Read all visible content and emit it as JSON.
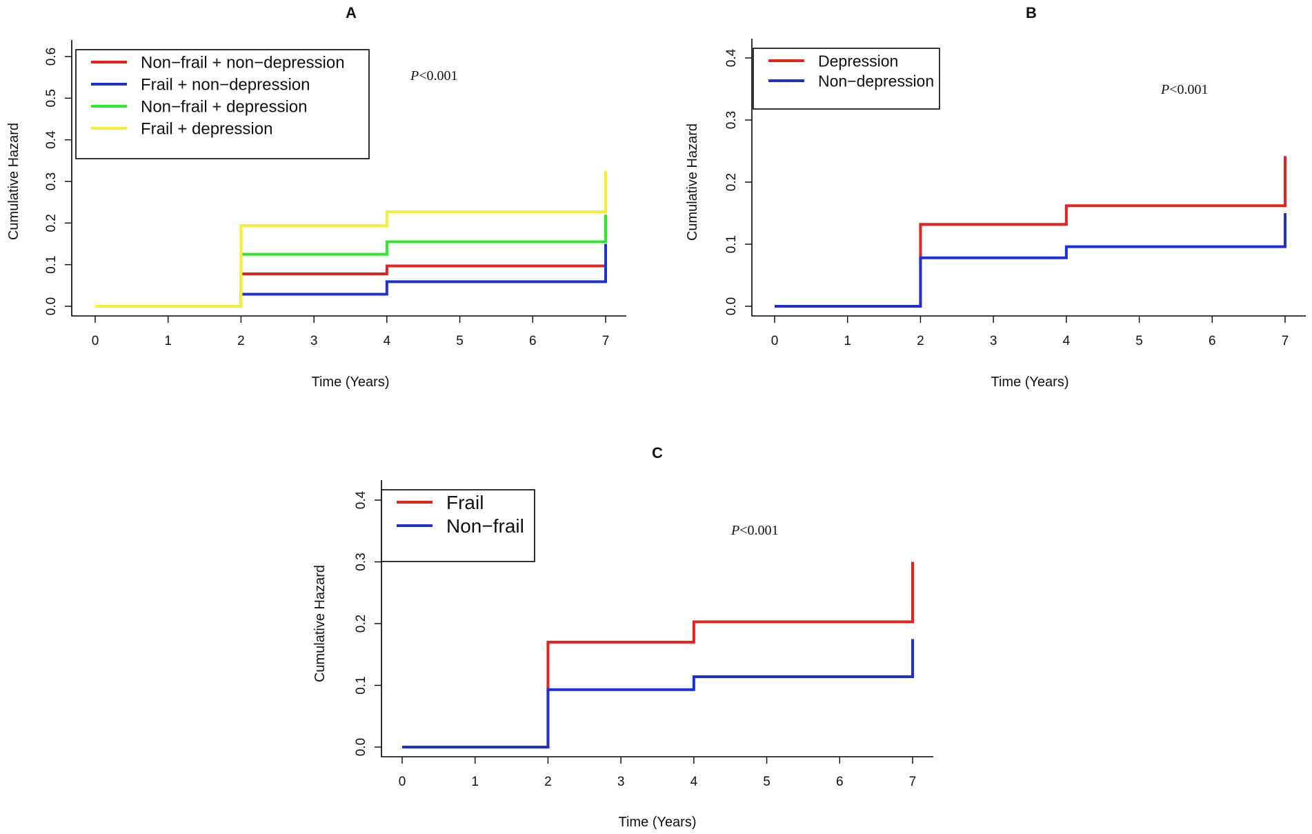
{
  "chart_data": [
    {
      "type": "line",
      "panel": "A",
      "title": "A",
      "xlabel": "Time (Years)",
      "ylabel": "Cumulative Hazard",
      "xlim": [
        0,
        7
      ],
      "ylim": [
        0,
        0.6
      ],
      "xticks": [
        "0",
        "1",
        "2",
        "3",
        "4",
        "5",
        "6",
        "7"
      ],
      "yticks": [
        "0.0",
        "0.1",
        "0.2",
        "0.3",
        "0.4",
        "0.5",
        "0.6"
      ],
      "annotation": {
        "italic": "P",
        "rest": "<0.001"
      },
      "legend_position": "top-left",
      "series": [
        {
          "name": "Non−frail + non−depression",
          "color": "#e8201e",
          "steps": [
            [
              0,
              0
            ],
            [
              2,
              0.078
            ],
            [
              4,
              0.097
            ],
            [
              7,
              0.097
            ]
          ],
          "end_value": 0.12
        },
        {
          "name": "Frail + non−depression",
          "color": "#1f2fd6",
          "steps": [
            [
              0,
              0
            ],
            [
              2,
              0.029
            ],
            [
              4,
              0.059
            ],
            [
              7,
              0.059
            ]
          ],
          "end_value": 0.15
        },
        {
          "name": "Non−frail + depression",
          "color": "#2ee82a",
          "steps": [
            [
              0,
              0
            ],
            [
              2,
              0.125
            ],
            [
              4,
              0.155
            ],
            [
              7,
              0.155
            ]
          ],
          "end_value": 0.22
        },
        {
          "name": "Frail + depression",
          "color": "#f6ef3a",
          "steps": [
            [
              0,
              0
            ],
            [
              2,
              0.194
            ],
            [
              4,
              0.227
            ],
            [
              7,
              0.227
            ]
          ],
          "end_value": 0.325
        }
      ]
    },
    {
      "type": "line",
      "panel": "B",
      "title": "B",
      "xlabel": "Time (Years)",
      "ylabel": "Cumulative Hazard",
      "xlim": [
        0,
        7
      ],
      "ylim": [
        0,
        0.4
      ],
      "xticks": [
        "0",
        "1",
        "2",
        "3",
        "4",
        "5",
        "6",
        "7"
      ],
      "yticks": [
        "0.0",
        "0.1",
        "0.2",
        "0.3",
        "0.4"
      ],
      "annotation": {
        "italic": "P",
        "rest": "<0.001"
      },
      "legend_position": "top-left",
      "series": [
        {
          "name": "Depression",
          "color": "#e8201e",
          "steps": [
            [
              0,
              0
            ],
            [
              2,
              0.132
            ],
            [
              4,
              0.162
            ],
            [
              7,
              0.162
            ]
          ],
          "end_value": 0.242
        },
        {
          "name": "Non−depression",
          "color": "#1f2fd6",
          "steps": [
            [
              0,
              0
            ],
            [
              2,
              0.078
            ],
            [
              4,
              0.096
            ],
            [
              7,
              0.096
            ]
          ],
          "end_value": 0.15
        }
      ]
    },
    {
      "type": "line",
      "panel": "C",
      "title": "C",
      "xlabel": "Time (Years)",
      "ylabel": "Cumulative Hazard",
      "xlim": [
        0,
        7
      ],
      "ylim": [
        0,
        0.4
      ],
      "xticks": [
        "0",
        "1",
        "2",
        "3",
        "4",
        "5",
        "6",
        "7"
      ],
      "yticks": [
        "0.0",
        "0.1",
        "0.2",
        "0.3",
        "0.4"
      ],
      "annotation": {
        "italic": "P",
        "rest": "<0.001"
      },
      "legend_position": "top-left",
      "series": [
        {
          "name": "Frail",
          "color": "#e8201e",
          "steps": [
            [
              0,
              0
            ],
            [
              2,
              0.17
            ],
            [
              4,
              0.203
            ],
            [
              7,
              0.203
            ]
          ],
          "end_value": 0.3
        },
        {
          "name": "Non−frail",
          "color": "#1f2fd6",
          "steps": [
            [
              0,
              0
            ],
            [
              2,
              0.093
            ],
            [
              4,
              0.114
            ],
            [
              7,
              0.114
            ]
          ],
          "end_value": 0.175
        }
      ]
    }
  ]
}
